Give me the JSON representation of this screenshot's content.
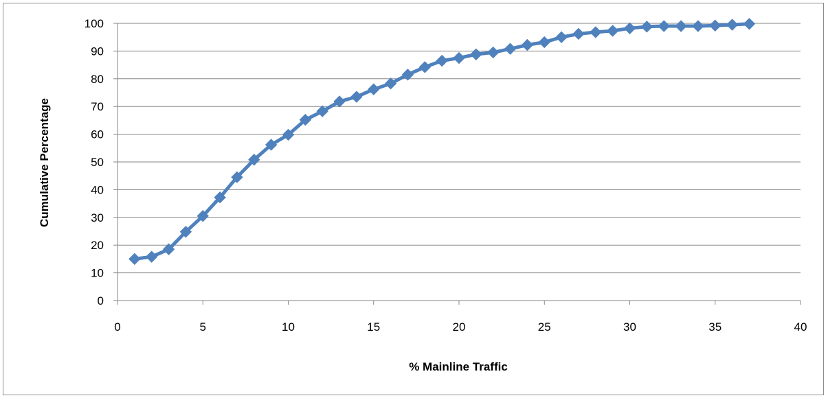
{
  "colors": {
    "series": "#4F81BD",
    "gridline": "#868686",
    "axis": "#868686",
    "frame": "#8c8c8c"
  },
  "chart_data": {
    "type": "line",
    "title": "",
    "xlabel": "% Mainline  Traffic",
    "ylabel": "Cumulative Percentage",
    "xlim": [
      0,
      40
    ],
    "ylim": [
      0,
      100
    ],
    "x_ticks": [
      0,
      5,
      10,
      15,
      20,
      25,
      30,
      35,
      40
    ],
    "y_ticks": [
      0,
      10,
      20,
      30,
      40,
      50,
      60,
      70,
      80,
      90,
      100
    ],
    "grid": "horizontal",
    "legend": "none",
    "marker": "diamond",
    "series": [
      {
        "x": [
          1,
          2,
          3,
          4,
          5,
          6,
          7,
          8,
          9,
          10,
          11,
          12,
          13,
          14,
          15,
          16,
          17,
          18,
          19,
          20,
          21,
          22,
          23,
          24,
          25,
          26,
          27,
          28,
          29,
          30,
          31,
          32,
          33,
          34,
          35,
          36,
          37
        ],
        "y": [
          15,
          15.8,
          18.5,
          24.8,
          30.5,
          37.2,
          44.5,
          50.8,
          56.2,
          59.8,
          65.2,
          68.3,
          71.8,
          73.5,
          76.2,
          78.3,
          81.5,
          84.2,
          86.5,
          87.5,
          88.8,
          89.5,
          90.8,
          92.2,
          93.2,
          95,
          96.2,
          96.8,
          97.3,
          98.2,
          98.8,
          99,
          99,
          99,
          99.2,
          99.5,
          99.8
        ]
      }
    ]
  }
}
